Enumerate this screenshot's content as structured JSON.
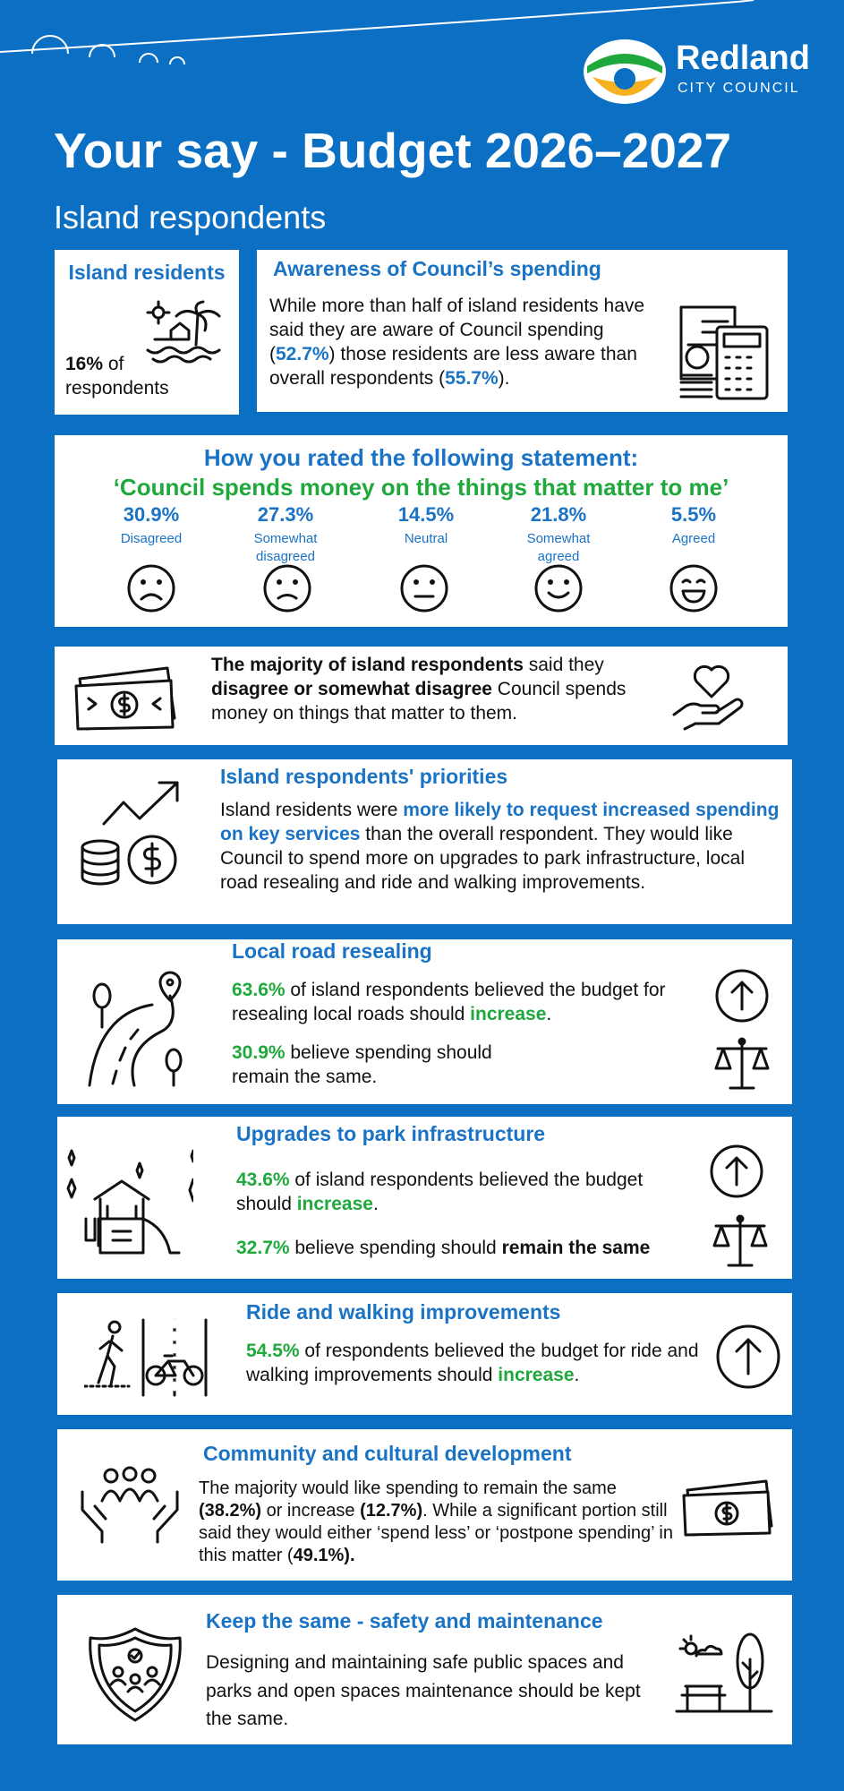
{
  "header": {
    "logo_name": "Redland",
    "logo_sub": "CITY COUNCIL",
    "title": "Your say - Budget 2026–2027",
    "subtitle": "Island respondents"
  },
  "island_residents": {
    "title": "Island residents",
    "stat": "16%",
    "text": "of respondents"
  },
  "awareness": {
    "title": "Awareness of Council’s spending",
    "segments": [
      "While more than half of island residents have said they are aware of Council spending (",
      "52.7%",
      ") those residents are less aware than overall respondents (",
      "55.7%",
      ")."
    ]
  },
  "rating": {
    "title": "How you rated the following statement:",
    "statement": "‘Council spends money on the things that matter to me’",
    "items": [
      {
        "percent": "30.9%",
        "label": "Disagreed"
      },
      {
        "percent": "27.3%",
        "label": "Somewhat disagreed"
      },
      {
        "percent": "14.5%",
        "label": "Neutral"
      },
      {
        "percent": "21.8%",
        "label": "Somewhat agreed"
      },
      {
        "percent": "5.5%",
        "label": "Agreed"
      }
    ]
  },
  "majority": {
    "segments": [
      "The majority of island respondents",
      " said they ",
      "disagree or somewhat disagree",
      " Council spends money on things that matter to them."
    ]
  },
  "priorities": {
    "title": "Island respondents' priorities",
    "segments": [
      "Island residents were ",
      "more likely to request increased spending on key services",
      " than the overall respondent. They would like Council to spend more on upgrades to park infrastructure, local road resealing and ride and walking improvements."
    ]
  },
  "road": {
    "title": "Local road resealing",
    "paragraphs": [
      [
        "63.6%",
        " of island respondents believed the budget for resealing local roads should ",
        "increase",
        "."
      ],
      [
        "30.9%",
        " believe spending should remain the same."
      ]
    ]
  },
  "park": {
    "title": "Upgrades to park infrastructure",
    "paragraphs": [
      [
        "43.6%",
        " of island respondents believed the budget should ",
        "increase",
        "."
      ],
      [
        "32.7%",
        " believe spending should ",
        "remain the same"
      ]
    ]
  },
  "ride": {
    "title": "Ride and walking improvements",
    "segments": [
      "54.5%",
      " of respondents believed the budget for ride and walking improvements should ",
      "increase",
      "."
    ]
  },
  "community": {
    "title": "Community and cultural development",
    "segments": [
      "The majority would like spending to remain the same ",
      "(38.2%)",
      " or increase ",
      "(12.7%)",
      ". While a significant portion still said they would either ‘spend less’ or ‘postpone spending’ in this matter (",
      "49.1%).",
      ""
    ]
  },
  "keep": {
    "title": "Keep the same - safety and maintenance",
    "text": "Designing and maintaining safe public spaces and parks and open spaces maintenance should be kept the same."
  }
}
